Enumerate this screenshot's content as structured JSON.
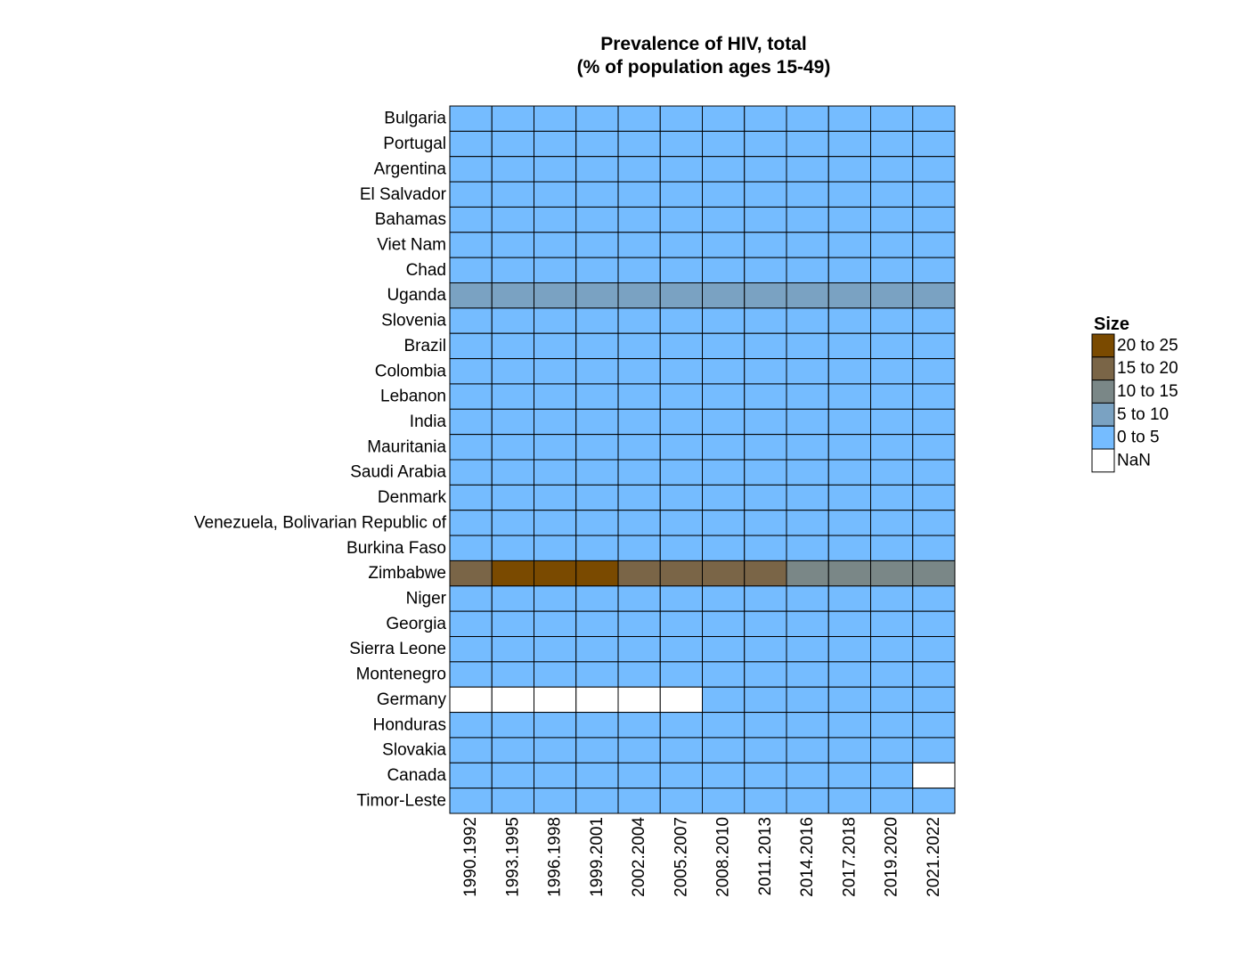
{
  "chart_data": {
    "type": "heatmap",
    "title_lines": [
      "Prevalence of HIV, total",
      "(% of population ages 15-49)"
    ],
    "rows": [
      "Bulgaria",
      "Portugal",
      "Argentina",
      "El Salvador",
      "Bahamas",
      "Viet Nam",
      "Chad",
      "Uganda",
      "Slovenia",
      "Brazil",
      "Colombia",
      "Lebanon",
      "India",
      "Mauritania",
      "Saudi Arabia",
      "Denmark",
      "Venezuela, Bolivarian Republic of",
      "Burkina Faso",
      "Zimbabwe",
      "Niger",
      "Georgia",
      "Sierra Leone",
      "Montenegro",
      "Germany",
      "Honduras",
      "Slovakia",
      "Canada",
      "Timor-Leste"
    ],
    "columns": [
      "1990.1992",
      "1993.1995",
      "1996.1998",
      "1999.2001",
      "2002.2004",
      "2005.2007",
      "2008.2010",
      "2011.2013",
      "2014.2016",
      "2017.2018",
      "2019.2020",
      "2021.2022"
    ],
    "bins": [
      {
        "label": "20  to  25",
        "min": 20,
        "max": 25,
        "color": "#7a4a00"
      },
      {
        "label": "15  to  20",
        "min": 15,
        "max": 20,
        "color": "#7a6547"
      },
      {
        "label": "10  to  15",
        "min": 10,
        "max": 15,
        "color": "#7a8787"
      },
      {
        "label": "5  to  10",
        "min": 5,
        "max": 10,
        "color": "#7aa2c2"
      },
      {
        "label": "0  to  5",
        "min": 0,
        "max": 5,
        "color": "#75bcff"
      },
      {
        "label": "NaN",
        "min": null,
        "max": null,
        "color": "#ffffff"
      }
    ],
    "legend_title": "Size",
    "values": [
      [
        0.1,
        0.1,
        0.1,
        0.1,
        0.1,
        0.1,
        0.1,
        0.1,
        0.1,
        0.1,
        0.1,
        0.1
      ],
      [
        0.5,
        0.6,
        0.7,
        0.7,
        0.6,
        0.5,
        0.5,
        0.4,
        0.4,
        0.4,
        0.4,
        0.4
      ],
      [
        0.3,
        0.4,
        0.4,
        0.4,
        0.4,
        0.4,
        0.4,
        0.4,
        0.4,
        0.4,
        0.4,
        0.4
      ],
      [
        0.2,
        0.3,
        0.4,
        0.4,
        0.4,
        0.4,
        0.3,
        0.3,
        0.3,
        0.3,
        0.3,
        0.3
      ],
      [
        3.5,
        3.8,
        3.5,
        3.2,
        3.2,
        3.0,
        3.0,
        3.0,
        3.0,
        3.0,
        3.0,
        3.0
      ],
      [
        0.1,
        0.1,
        0.2,
        0.3,
        0.4,
        0.4,
        0.4,
        0.3,
        0.3,
        0.3,
        0.3,
        0.3
      ],
      [
        3.0,
        3.5,
        3.5,
        3.2,
        2.8,
        2.3,
        2.0,
        1.6,
        1.4,
        1.3,
        1.2,
        1.1
      ],
      [
        8.5,
        8.0,
        7.5,
        7.0,
        6.8,
        6.8,
        7.0,
        6.8,
        6.0,
        5.8,
        5.5,
        5.2
      ],
      [
        0.1,
        0.1,
        0.1,
        0.1,
        0.1,
        0.1,
        0.1,
        0.1,
        0.1,
        0.1,
        0.1,
        0.1
      ],
      [
        0.5,
        0.5,
        0.5,
        0.5,
        0.5,
        0.5,
        0.5,
        0.5,
        0.5,
        0.5,
        0.5,
        0.5
      ],
      [
        0.4,
        0.4,
        0.5,
        0.5,
        0.5,
        0.5,
        0.5,
        0.5,
        0.5,
        0.5,
        0.5,
        0.5
      ],
      [
        0.1,
        0.1,
        0.1,
        0.1,
        0.1,
        0.1,
        0.1,
        0.1,
        0.1,
        0.1,
        0.1,
        0.1
      ],
      [
        0.3,
        0.4,
        0.4,
        0.4,
        0.3,
        0.3,
        0.3,
        0.2,
        0.2,
        0.2,
        0.2,
        0.2
      ],
      [
        0.1,
        0.2,
        0.3,
        0.4,
        0.5,
        0.5,
        0.4,
        0.4,
        0.3,
        0.3,
        0.3,
        0.2
      ],
      [
        0.1,
        0.1,
        0.1,
        0.1,
        0.1,
        0.1,
        0.1,
        0.1,
        0.1,
        0.1,
        0.1,
        0.1
      ],
      [
        0.1,
        0.1,
        0.1,
        0.1,
        0.1,
        0.1,
        0.1,
        0.1,
        0.1,
        0.1,
        0.1,
        0.1
      ],
      [
        0.5,
        0.5,
        0.5,
        0.5,
        0.5,
        0.5,
        0.5,
        0.5,
        0.5,
        0.5,
        0.5,
        0.5
      ],
      [
        2.5,
        2.6,
        2.4,
        2.0,
        1.6,
        1.3,
        1.0,
        0.9,
        0.8,
        0.7,
        0.6,
        0.6
      ],
      [
        17.0,
        22.0,
        24.0,
        22.0,
        19.0,
        17.0,
        16.0,
        15.0,
        14.0,
        12.5,
        11.5,
        11.0
      ],
      [
        0.5,
        0.6,
        0.6,
        0.6,
        0.5,
        0.5,
        0.4,
        0.3,
        0.3,
        0.2,
        0.2,
        0.2
      ],
      [
        0.1,
        0.1,
        0.1,
        0.1,
        0.1,
        0.2,
        0.2,
        0.3,
        0.3,
        0.3,
        0.3,
        0.3
      ],
      [
        0.5,
        0.8,
        1.0,
        1.2,
        1.4,
        1.5,
        1.5,
        1.5,
        1.4,
        1.3,
        1.2,
        1.1
      ],
      [
        0.1,
        0.1,
        0.1,
        0.1,
        0.1,
        0.1,
        0.1,
        0.1,
        0.1,
        0.1,
        0.1,
        0.1
      ],
      [
        null,
        null,
        null,
        null,
        null,
        null,
        0.1,
        0.1,
        0.1,
        0.1,
        0.1,
        0.1
      ],
      [
        0.5,
        0.6,
        0.6,
        0.5,
        0.4,
        0.3,
        0.3,
        0.2,
        0.2,
        0.2,
        0.2,
        0.2
      ],
      [
        0.1,
        0.1,
        0.1,
        0.1,
        0.1,
        0.1,
        0.1,
        0.1,
        0.1,
        0.1,
        0.1,
        0.1
      ],
      [
        0.2,
        0.2,
        0.2,
        0.2,
        0.2,
        0.2,
        0.2,
        0.2,
        0.2,
        0.2,
        0.2,
        null
      ],
      [
        0.1,
        0.1,
        0.1,
        0.1,
        0.1,
        0.1,
        0.1,
        0.2,
        0.2,
        0.2,
        0.2,
        0.2
      ]
    ]
  }
}
